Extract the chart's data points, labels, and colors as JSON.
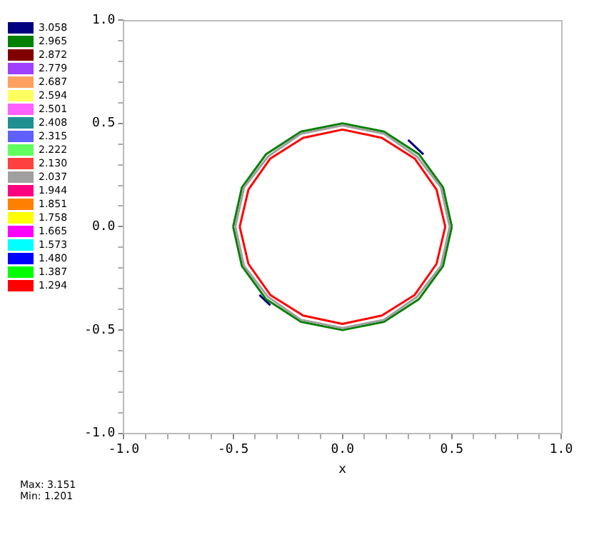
{
  "chart_data": {
    "type": "line",
    "xlabel": "x",
    "marker": "none",
    "grid": false,
    "legend": "left",
    "annotations": [
      "Max: 3.151",
      "Min: 1.201"
    ],
    "xlim": [
      -1,
      1
    ],
    "ylim": [
      -1,
      1
    ],
    "xticks": [
      {
        "value": -1,
        "label": "-1.0"
      },
      {
        "value": -0.9,
        "label": null
      },
      {
        "value": -0.8,
        "label": null
      },
      {
        "value": -0.7,
        "label": null
      },
      {
        "value": -0.6,
        "label": null
      },
      {
        "value": -0.5,
        "label": "-0.5"
      },
      {
        "value": -0.4,
        "label": null
      },
      {
        "value": -0.3,
        "label": null
      },
      {
        "value": -0.2,
        "label": null
      },
      {
        "value": -0.1,
        "label": null
      },
      {
        "value": 0,
        "label": "0.0"
      },
      {
        "value": 0.1,
        "label": null
      },
      {
        "value": 0.2,
        "label": null
      },
      {
        "value": 0.3,
        "label": null
      },
      {
        "value": 0.4,
        "label": null
      },
      {
        "value": 0.5,
        "label": "0.5"
      },
      {
        "value": 0.6,
        "label": null
      },
      {
        "value": 0.7,
        "label": null
      },
      {
        "value": 0.8,
        "label": null
      },
      {
        "value": 0.9,
        "label": null
      },
      {
        "value": 1,
        "label": "1.0"
      }
    ],
    "yticks": [
      {
        "value": -1,
        "label": "-1.0"
      },
      {
        "value": -0.9,
        "label": null
      },
      {
        "value": -0.8,
        "label": null
      },
      {
        "value": -0.7,
        "label": null
      },
      {
        "value": -0.6,
        "label": null
      },
      {
        "value": -0.5,
        "label": "-0.5"
      },
      {
        "value": -0.4,
        "label": null
      },
      {
        "value": -0.3,
        "label": null
      },
      {
        "value": -0.2,
        "label": null
      },
      {
        "value": -0.1,
        "label": null
      },
      {
        "value": 0,
        "label": "0.0"
      },
      {
        "value": 0.1,
        "label": null
      },
      {
        "value": 0.2,
        "label": null
      },
      {
        "value": 0.3,
        "label": null
      },
      {
        "value": 0.4,
        "label": null
      },
      {
        "value": 0.5,
        "label": "0.5"
      },
      {
        "value": 0.6,
        "label": null
      },
      {
        "value": 0.7,
        "label": null
      },
      {
        "value": 0.8,
        "label": null
      },
      {
        "value": 0.9,
        "label": null
      },
      {
        "value": 1,
        "label": "1.0"
      }
    ],
    "series": [
      {
        "name": "3.058",
        "color": "#000080",
        "x": [
          0.3,
          0.37,
          null,
          -0.38,
          -0.33
        ],
        "values": [
          0.42,
          0.35,
          null,
          -0.33,
          -0.38
        ]
      },
      {
        "name": "2.965",
        "color": "#008000",
        "x": [
          0.5,
          0.46,
          0.35,
          0.19,
          0,
          -0.19,
          -0.35,
          -0.46,
          -0.5,
          null,
          -0.5,
          -0.46,
          -0.35,
          -0.19,
          0,
          0.19,
          0.35,
          0.46,
          0.5
        ],
        "values": [
          0,
          0.19,
          0.35,
          0.46,
          0.5,
          0.46,
          0.35,
          0.19,
          0,
          null,
          0,
          -0.19,
          -0.35,
          -0.46,
          -0.5,
          -0.46,
          -0.35,
          -0.19,
          0
        ]
      },
      {
        "name": "2.872",
        "color": "#800000"
      },
      {
        "name": "2.779",
        "color": "#a040ff"
      },
      {
        "name": "2.687",
        "color": "#ffa060"
      },
      {
        "name": "2.594",
        "color": "#ffff60"
      },
      {
        "name": "2.501",
        "color": "#ff60ff"
      },
      {
        "name": "2.408",
        "color": "#209090"
      },
      {
        "name": "2.315",
        "color": "#6060ff"
      },
      {
        "name": "2.222",
        "color": "#60ff60"
      },
      {
        "name": "2.130",
        "color": "#ff4040"
      },
      {
        "name": "2.037",
        "color": "#a0a0a0",
        "x": [
          0.49,
          0.45,
          0.34,
          0.19,
          0,
          -0.19,
          -0.34,
          -0.45,
          -0.49,
          null,
          -0.49,
          -0.45,
          -0.34,
          -0.19,
          0,
          0.19,
          0.34,
          0.45,
          0.49
        ],
        "values": [
          0,
          0.19,
          0.34,
          0.45,
          0.49,
          0.45,
          0.34,
          0.19,
          0,
          null,
          0,
          -0.19,
          -0.34,
          -0.45,
          -0.49,
          -0.45,
          -0.34,
          -0.19,
          0
        ]
      },
      {
        "name": "1.944",
        "color": "#ff0080"
      },
      {
        "name": "1.851",
        "color": "#ff8000"
      },
      {
        "name": "1.758",
        "color": "#ffff00"
      },
      {
        "name": "1.665",
        "color": "#ff00ff"
      },
      {
        "name": "1.573",
        "color": "#00ffff"
      },
      {
        "name": "1.480",
        "color": "#0000ff"
      },
      {
        "name": "1.387",
        "color": "#00ff00"
      },
      {
        "name": "1.294",
        "color": "#ff0000",
        "x": [
          0.47,
          0.43,
          0.33,
          0.18,
          0,
          -0.18,
          -0.33,
          -0.43,
          -0.47,
          null,
          -0.47,
          -0.43,
          -0.33,
          -0.18,
          0,
          0.18,
          0.33,
          0.43,
          0.47
        ],
        "values": [
          0,
          0.18,
          0.33,
          0.43,
          0.47,
          0.43,
          0.33,
          0.18,
          0,
          null,
          0,
          -0.18,
          -0.33,
          -0.43,
          -0.47,
          -0.43,
          -0.33,
          -0.18,
          0
        ]
      }
    ]
  }
}
